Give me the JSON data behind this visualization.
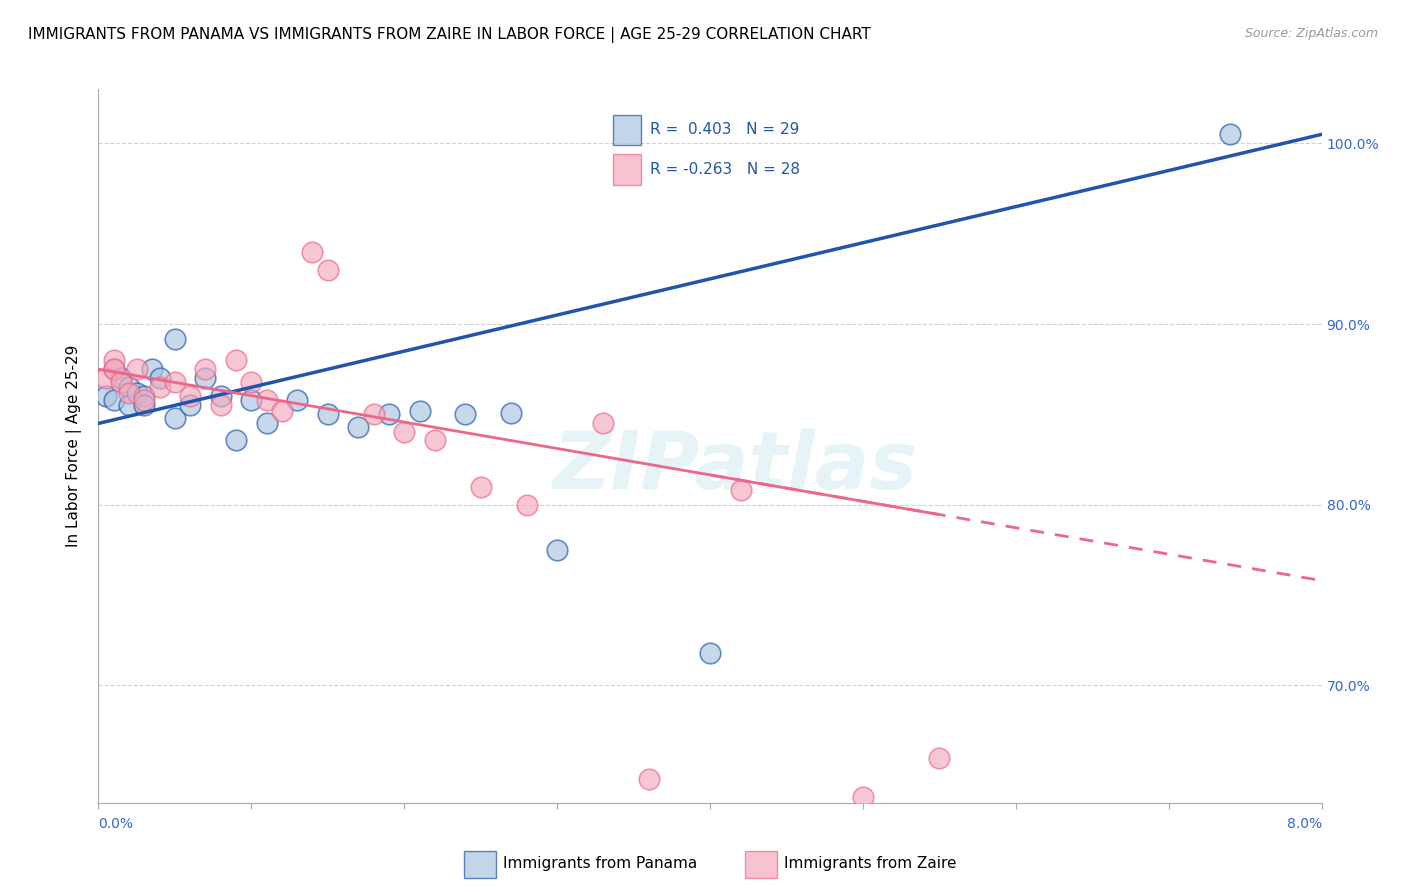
{
  "title": "IMMIGRANTS FROM PANAMA VS IMMIGRANTS FROM ZAIRE IN LABOR FORCE | AGE 25-29 CORRELATION CHART",
  "source": "Source: ZipAtlas.com",
  "ylabel": "In Labor Force | Age 25-29",
  "legend_panama": "Immigrants from Panama",
  "legend_zaire": "Immigrants from Zaire",
  "R_panama": 0.403,
  "N_panama": 29,
  "R_zaire": -0.263,
  "N_zaire": 28,
  "color_panama": "#a8c4e0",
  "color_zaire": "#f4aabc",
  "color_line_panama": "#2255aa",
  "color_line_zaire": "#ee6688",
  "watermark": "ZIPatlas",
  "xmin": 0.0,
  "xmax": 0.08,
  "ymin": 0.635,
  "ymax": 1.03,
  "panama_x": [
    0.0005,
    0.001,
    0.001,
    0.0015,
    0.002,
    0.002,
    0.0025,
    0.003,
    0.003,
    0.0035,
    0.004,
    0.005,
    0.005,
    0.006,
    0.007,
    0.008,
    0.009,
    0.01,
    0.011,
    0.013,
    0.015,
    0.017,
    0.019,
    0.021,
    0.024,
    0.027,
    0.03,
    0.04,
    0.074
  ],
  "panama_y": [
    0.86,
    0.858,
    0.875,
    0.87,
    0.865,
    0.855,
    0.862,
    0.86,
    0.855,
    0.875,
    0.87,
    0.892,
    0.848,
    0.855,
    0.87,
    0.86,
    0.836,
    0.858,
    0.845,
    0.858,
    0.85,
    0.843,
    0.85,
    0.852,
    0.85,
    0.851,
    0.775,
    0.718,
    1.005
  ],
  "zaire_x": [
    0.0005,
    0.001,
    0.001,
    0.0015,
    0.002,
    0.0025,
    0.003,
    0.004,
    0.005,
    0.006,
    0.007,
    0.008,
    0.009,
    0.01,
    0.011,
    0.012,
    0.014,
    0.015,
    0.018,
    0.02,
    0.022,
    0.025,
    0.028,
    0.033,
    0.036,
    0.042,
    0.05,
    0.055
  ],
  "zaire_y": [
    0.87,
    0.88,
    0.875,
    0.868,
    0.862,
    0.875,
    0.858,
    0.865,
    0.868,
    0.86,
    0.875,
    0.855,
    0.88,
    0.868,
    0.858,
    0.852,
    0.94,
    0.93,
    0.85,
    0.84,
    0.836,
    0.81,
    0.8,
    0.845,
    0.648,
    0.808,
    0.638,
    0.66
  ],
  "blue_line_x0": 0.0,
  "blue_line_x1": 0.08,
  "blue_line_y0": 0.845,
  "blue_line_y1": 1.005,
  "pink_line_x0": 0.0,
  "pink_line_x1": 0.08,
  "pink_line_y0": 0.875,
  "pink_line_y1": 0.758
}
